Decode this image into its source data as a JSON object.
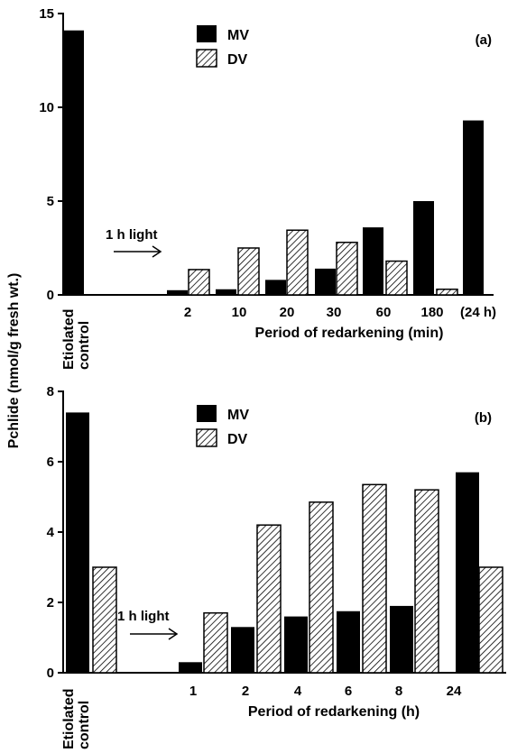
{
  "chart_data": [
    {
      "type": "bar",
      "panel_label": "(a)",
      "xlabel": "Period of redarkening (min)",
      "ylabel": "Pchlide (nmol/g fresh wt.)",
      "ylim": [
        0,
        15
      ],
      "yticks": [
        "0",
        "5",
        "10",
        "15"
      ],
      "control_label": [
        "Etiolated",
        "control"
      ],
      "categories": [
        "2",
        "10",
        "20",
        "30",
        "60",
        "180",
        "(24 h)"
      ],
      "annotation": "1 h light",
      "legend_position": "top-center",
      "series": [
        {
          "name": "MV",
          "fill": "solid",
          "control": 14.1,
          "values": [
            0.25,
            0.3,
            0.8,
            1.4,
            3.6,
            5.0,
            9.3
          ]
        },
        {
          "name": "DV",
          "fill": "hatched",
          "control": null,
          "values": [
            1.35,
            2.5,
            3.45,
            2.8,
            1.8,
            0.3,
            null
          ]
        }
      ],
      "colors": {
        "bar": "#000000",
        "hatch": "#000000"
      }
    },
    {
      "type": "bar",
      "panel_label": "(b)",
      "xlabel": "Period of redarkening (h)",
      "ylabel": "Pchlide (nmol/g fresh wt.)",
      "ylim": [
        0,
        8
      ],
      "yticks": [
        "0",
        "2",
        "4",
        "6",
        "8"
      ],
      "control_label": [
        "Etiolated",
        "control"
      ],
      "categories": [
        "1",
        "2",
        "4",
        "6",
        "8",
        "24"
      ],
      "annotation": "1 h light",
      "legend_position": "top-center",
      "series": [
        {
          "name": "MV",
          "fill": "solid",
          "control": 7.4,
          "values": [
            0.3,
            1.3,
            1.6,
            1.75,
            1.9,
            5.7
          ]
        },
        {
          "name": "DV",
          "fill": "hatched",
          "control": 3.0,
          "values": [
            1.7,
            4.2,
            4.85,
            5.35,
            5.2,
            3.0
          ]
        }
      ],
      "colors": {
        "bar": "#000000",
        "hatch": "#000000"
      }
    }
  ]
}
